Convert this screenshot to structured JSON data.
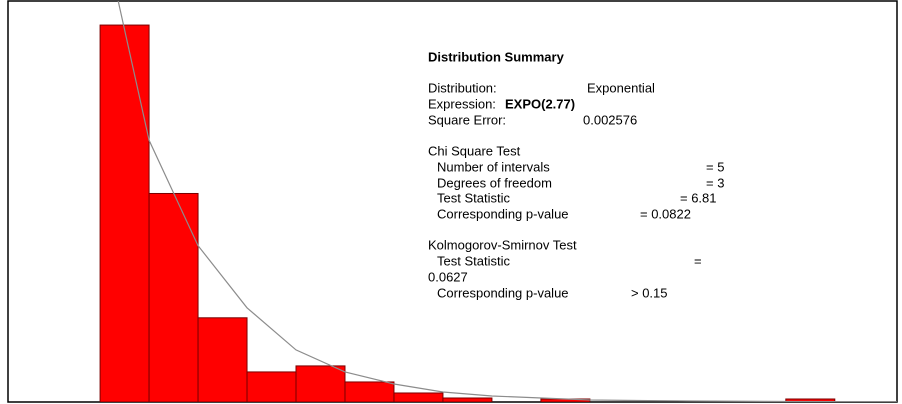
{
  "chart_data": {
    "type": "histogram",
    "bins": [
      0,
      1,
      2,
      3,
      4,
      5,
      6,
      7,
      8,
      9,
      10,
      11,
      12,
      13,
      14,
      15
    ],
    "values": [
      0.376,
      0.208,
      0.084,
      0.03,
      0.036,
      0.02,
      0.009,
      0.004,
      0,
      0.003,
      0,
      0,
      0,
      0,
      0.003
    ],
    "color": "#ff0000",
    "xlim": [
      -1.88,
      16.27
    ],
    "ylim": [
      0,
      0.4
    ],
    "curve": {
      "color": "#8c8c8c",
      "x": [
        0.37,
        1,
        2,
        3,
        4,
        5,
        6,
        7,
        8,
        10,
        12,
        14,
        16.27
      ],
      "y": [
        0.4,
        0.261,
        0.156,
        0.094,
        0.052,
        0.03,
        0.018,
        0.01,
        0.006,
        0.002,
        0.001,
        0.0005,
        0.0002
      ]
    },
    "summary": {
      "title": "Distribution Summary",
      "distribution": {
        "label": "Distribution:",
        "value": "Exponential"
      },
      "expression": {
        "label": "Expression:",
        "value": "EXPO(2.77)"
      },
      "square_error": {
        "label": "Square Error:",
        "value": "0.002576"
      },
      "chi_square": {
        "title": "Chi Square Test",
        "rows": [
          {
            "label": "Number of intervals",
            "value": "= 5"
          },
          {
            "label": "Degrees of freedom",
            "value": "= 3"
          },
          {
            "label": "Test Statistic",
            "value": "= 6.81"
          },
          {
            "label": "Corresponding p-value",
            "value": "= 0.0822"
          }
        ]
      },
      "ks": {
        "title": "Kolmogorov-Smirnov Test",
        "stat_label": "Test Statistic",
        "stat_eq": "=",
        "stat_value": "0.0627",
        "p_label": "Corresponding p-value",
        "p_value": "> 0.15"
      }
    }
  }
}
